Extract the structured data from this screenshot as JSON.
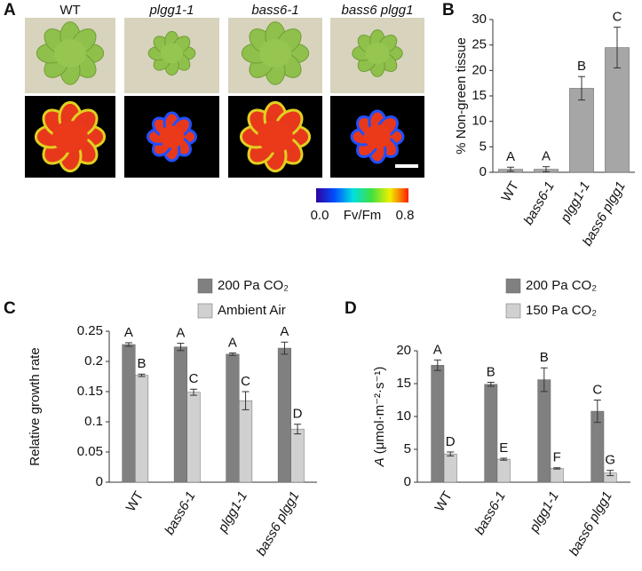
{
  "panel_a": {
    "panel_label": "A",
    "genotypes": [
      "WT",
      "plgg1-1",
      "bass6-1",
      "bass6 plgg1"
    ],
    "colorbar": {
      "title": "Fv/Fm",
      "lim": [
        0,
        0.8
      ],
      "ticks": [
        {
          "value": 0,
          "label": "0.0"
        },
        {
          "value": 0.8,
          "label": "0.8"
        }
      ]
    }
  },
  "chart_data": [
    {
      "type": "bar",
      "panel_label": "B",
      "ylabel": "% Non-green tissue",
      "categories": [
        "WT",
        "bass6-1",
        "plgg1-1",
        "bass6 plgg1"
      ],
      "series": [
        {
          "color": "#a6a6a6",
          "values": [
            0.6,
            0.6,
            16.5,
            24.5
          ],
          "errors": [
            0.4,
            0.5,
            2.3,
            4
          ],
          "letters": [
            "A",
            "A",
            "B",
            "C"
          ]
        }
      ],
      "ylim": [
        0,
        30
      ],
      "yticks": [
        0,
        5,
        10,
        15,
        20,
        25,
        30
      ]
    },
    {
      "type": "bar",
      "panel_label": "C",
      "ylabel": "Relative growth rate",
      "categories": [
        "WT",
        "bass6-1",
        "plgg1-1",
        "bass6 plgg1"
      ],
      "series": [
        {
          "name": "200 Pa CO₂",
          "color": "#808080",
          "values": [
            0.228,
            0.224,
            0.212,
            0.222
          ],
          "errors": [
            0.003,
            0.006,
            0.002,
            0.01
          ],
          "letters": [
            "A",
            "A",
            "A",
            "A"
          ]
        },
        {
          "name": "Ambient Air",
          "color": "#d0d0d0",
          "values": [
            0.177,
            0.149,
            0.135,
            0.088
          ],
          "errors": [
            0.002,
            0.005,
            0.015,
            0.008
          ],
          "letters": [
            "B",
            "C",
            "C",
            "D"
          ]
        }
      ],
      "ylim": [
        0,
        0.25
      ],
      "yticks": [
        0,
        0.05,
        0.1,
        0.15,
        0.2,
        0.25
      ]
    },
    {
      "type": "bar",
      "panel_label": "D",
      "ylabel_symbol": "A",
      "ylabel": " (μmol·m⁻²·s⁻¹)",
      "categories": [
        "WT",
        "bass6-1",
        "plgg1-1",
        "bass6 plgg1"
      ],
      "series": [
        {
          "name": "200 Pa CO₂",
          "color": "#808080",
          "values": [
            17.8,
            14.9,
            15.6,
            10.8
          ],
          "errors": [
            0.8,
            0.3,
            1.8,
            1.7
          ],
          "letters": [
            "A",
            "B",
            "B",
            "C"
          ]
        },
        {
          "name": "150 Pa CO₂",
          "color": "#d0d0d0",
          "values": [
            4.3,
            3.5,
            2.1,
            1.4
          ],
          "errors": [
            0.3,
            0.15,
            0.1,
            0.4
          ],
          "letters": [
            "D",
            "E",
            "F",
            "G"
          ]
        }
      ],
      "ylim": [
        0,
        20
      ],
      "yticks": [
        0,
        5,
        10,
        15,
        20
      ]
    }
  ]
}
